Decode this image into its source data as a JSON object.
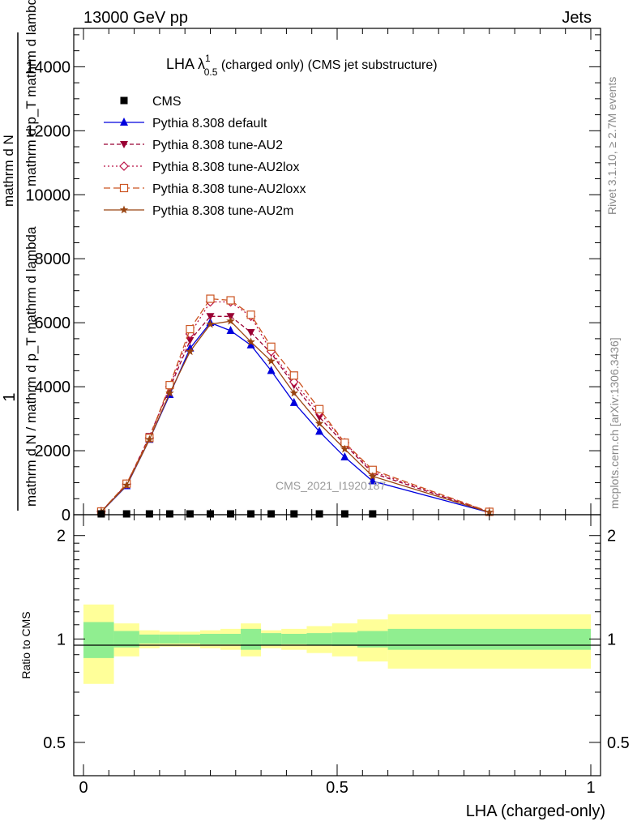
{
  "header": {
    "left": "13000 GeV pp",
    "right": "Jets"
  },
  "side": {
    "rivet": "Rivet 3.1.10, ≥ 2.7M events",
    "mcplots": "mcplots.cern.ch [arXiv:1306.3436]"
  },
  "chart_data": [
    {
      "type": "line",
      "title_parts": {
        "prefix": "LHA λ",
        "sup": "1",
        "sub": "0.5",
        "suffix": " (charged only) (CMS jet substructure)"
      },
      "ylabel_parts": {
        "numerator": "1",
        "denominator": "mathrm d N / mathrm d p_T mathrm d lambda",
        "top": "mathrm d N",
        "right": "mathrm d p_T mathrm d lambda"
      },
      "watermark": "CMS_2021_I1920187",
      "xlim": [
        0,
        1
      ],
      "ylim": [
        0,
        15200
      ],
      "yticks": [
        0,
        2000,
        4000,
        6000,
        8000,
        10000,
        12000,
        14000
      ],
      "ytick_labels": [
        "0",
        "2000",
        "4000",
        "6000",
        "8000",
        "10000",
        "12000",
        "14000"
      ],
      "legend_position": "top-left",
      "x": [
        0.035,
        0.085,
        0.13,
        0.17,
        0.21,
        0.25,
        0.29,
        0.33,
        0.37,
        0.415,
        0.465,
        0.515,
        0.57,
        0.8
      ],
      "series": [
        {
          "name": "CMS",
          "color": "#000000",
          "marker": "square",
          "values": [
            0,
            0,
            0,
            0,
            0,
            0,
            0,
            0,
            0,
            0,
            0,
            0,
            0,
            null
          ]
        },
        {
          "name": "Pythia 8.308 default",
          "color": "#0000dd",
          "marker": "triangle-up",
          "dash": "",
          "values": [
            90,
            900,
            2350,
            3750,
            5200,
            6000,
            5750,
            5300,
            4500,
            3500,
            2600,
            1800,
            1050,
            70
          ]
        },
        {
          "name": "Pythia 8.308 tune-AU2",
          "color": "#990033",
          "marker": "triangle-down",
          "dash": "5,3",
          "values": [
            95,
            950,
            2450,
            3950,
            5450,
            6200,
            6200,
            5700,
            5050,
            4050,
            3050,
            2200,
            1300,
            80
          ]
        },
        {
          "name": "Pythia 8.308 tune-AU2lox",
          "color": "#bb1144",
          "marker": "diamond-open",
          "dash": "2,3",
          "values": [
            100,
            960,
            2400,
            4000,
            5650,
            6650,
            6650,
            6200,
            5100,
            4150,
            3200,
            2250,
            1350,
            85
          ]
        },
        {
          "name": "Pythia 8.308 tune-AU2loxx",
          "color": "#cc5522",
          "marker": "square-open",
          "dash": "8,4",
          "values": [
            100,
            970,
            2400,
            4050,
            5800,
            6750,
            6700,
            6250,
            5250,
            4350,
            3300,
            2250,
            1400,
            90
          ]
        },
        {
          "name": "Pythia 8.308 tune-AU2m",
          "color": "#994411",
          "marker": "star",
          "dash": "",
          "values": [
            90,
            920,
            2350,
            3800,
            5100,
            5950,
            6050,
            5400,
            4800,
            3800,
            2850,
            2050,
            1200,
            75
          ]
        }
      ]
    },
    {
      "type": "area",
      "ylabel": "Ratio to CMS",
      "xlabel": "LHA (charged-only)",
      "xlim": [
        0,
        1
      ],
      "ylim": [
        0.4,
        2.3
      ],
      "ytick_labels": [
        "0.5",
        "1",
        "2"
      ],
      "yticks": [
        0.5,
        1,
        2
      ],
      "xtick_labels": [
        "0",
        "0.5",
        "1"
      ],
      "xticks": [
        0,
        0.5,
        1
      ],
      "bin_edges": [
        0,
        0.06,
        0.11,
        0.15,
        0.19,
        0.23,
        0.27,
        0.31,
        0.35,
        0.39,
        0.44,
        0.49,
        0.54,
        0.6,
        1.0
      ],
      "band_green": [
        0.12,
        0.055,
        0.03,
        0.03,
        0.03,
        0.035,
        0.035,
        0.07,
        0.04,
        0.035,
        0.04,
        0.045,
        0.055,
        0.07
      ],
      "band_yellow": [
        0.26,
        0.11,
        0.06,
        0.05,
        0.05,
        0.06,
        0.07,
        0.11,
        0.06,
        0.07,
        0.09,
        0.11,
        0.14,
        0.18
      ],
      "green_color": "#90ee90",
      "yellow_color": "#ffff99"
    }
  ]
}
